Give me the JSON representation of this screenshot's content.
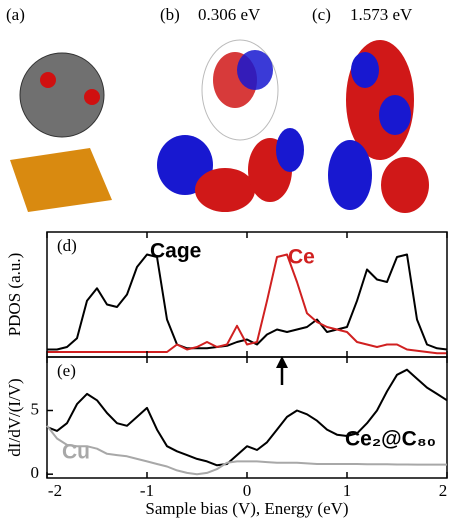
{
  "panels": [
    {
      "label": "(a)"
    },
    {
      "label": "(b)",
      "energy": "0.306 eV"
    },
    {
      "label": "(c)",
      "energy": "1.573 eV"
    }
  ],
  "chart_data": [
    {
      "type": "line",
      "panel": "(d)",
      "ylabel": "PDOS (a.u.)",
      "x": [
        -2,
        -1.9,
        -1.8,
        -1.7,
        -1.6,
        -1.5,
        -1.4,
        -1.3,
        -1.2,
        -1.1,
        -1,
        -0.9,
        -0.8,
        -0.7,
        -0.6,
        -0.5,
        -0.4,
        -0.3,
        -0.2,
        -0.1,
        0,
        0.1,
        0.2,
        0.3,
        0.4,
        0.5,
        0.6,
        0.7,
        0.8,
        0.9,
        1,
        1.1,
        1.2,
        1.3,
        1.4,
        1.5,
        1.6,
        1.7,
        1.8,
        1.9,
        2
      ],
      "xlim": [
        -2,
        2
      ],
      "ylim": [
        0,
        1
      ],
      "series": [
        {
          "name": "Cage",
          "color": "#000000",
          "values": [
            0.06,
            0.06,
            0.08,
            0.15,
            0.45,
            0.55,
            0.42,
            0.4,
            0.5,
            0.72,
            0.82,
            0.8,
            0.3,
            0.1,
            0.07,
            0.07,
            0.07,
            0.08,
            0.09,
            0.12,
            0.14,
            0.1,
            0.18,
            0.22,
            0.2,
            0.22,
            0.24,
            0.3,
            0.2,
            0.22,
            0.24,
            0.45,
            0.7,
            0.62,
            0.6,
            0.8,
            0.82,
            0.3,
            0.1,
            0.07,
            0.06
          ]
        },
        {
          "name": "Ce",
          "color": "#d02020",
          "values": [
            0.04,
            0.04,
            0.04,
            0.04,
            0.04,
            0.04,
            0.04,
            0.04,
            0.04,
            0.04,
            0.04,
            0.04,
            0.04,
            0.1,
            0.06,
            0.08,
            0.12,
            0.08,
            0.1,
            0.25,
            0.1,
            0.12,
            0.45,
            0.8,
            0.82,
            0.6,
            0.35,
            0.28,
            0.24,
            0.22,
            0.2,
            0.12,
            0.1,
            0.08,
            0.1,
            0.1,
            0.06,
            0.05,
            0.04,
            0.03,
            0.03
          ]
        }
      ]
    },
    {
      "type": "line",
      "panel": "(e)",
      "ylabel": "dI/dV/(I/V)",
      "xlabel": "Sample bias (V), Energy (eV)",
      "x": [
        -2,
        -1.9,
        -1.8,
        -1.7,
        -1.6,
        -1.5,
        -1.4,
        -1.3,
        -1.2,
        -1.1,
        -1,
        -0.9,
        -0.8,
        -0.7,
        -0.6,
        -0.5,
        -0.4,
        -0.3,
        -0.2,
        -0.1,
        0,
        0.1,
        0.2,
        0.3,
        0.4,
        0.5,
        0.6,
        0.7,
        0.8,
        0.9,
        1,
        1.1,
        1.2,
        1.3,
        1.4,
        1.5,
        1.6,
        1.7,
        1.8,
        1.9,
        2
      ],
      "xlim": [
        -2,
        2
      ],
      "xticks": [
        -2,
        -1,
        0,
        1,
        2
      ],
      "ylim": [
        -0.3,
        9.2
      ],
      "yticks": [
        0,
        5
      ],
      "series": [
        {
          "name": "Ce₂@C₈₀",
          "color": "#000000",
          "values": [
            3.7,
            3.4,
            4,
            5.5,
            6.3,
            5.8,
            4.8,
            4,
            3.8,
            4.5,
            5.2,
            3.5,
            2.2,
            1.8,
            1.5,
            1.2,
            1,
            0.7,
            0.8,
            1.5,
            2.2,
            1.9,
            2.5,
            3.5,
            4.5,
            5,
            4.7,
            4.2,
            3.5,
            3.1,
            3,
            3.2,
            4,
            5,
            6.5,
            7.8,
            8.2,
            7.5,
            6.8,
            6.3,
            5.8
          ]
        },
        {
          "name": "Cu",
          "color": "#a8a8a8",
          "values": [
            3.8,
            2.8,
            2.3,
            2.2,
            2.2,
            2,
            1.6,
            1.5,
            1.4,
            1.2,
            1,
            0.8,
            0.6,
            0.3,
            0.1,
            0,
            0.1,
            0.4,
            0.9,
            1,
            1,
            1,
            0.95,
            0.9,
            0.9,
            0.9,
            0.85,
            0.8,
            0.8,
            0.8,
            0.8,
            0.8,
            0.78,
            0.78,
            0.78,
            0.76,
            0.76,
            0.75,
            0.75,
            0.75,
            0.75
          ]
        }
      ]
    }
  ]
}
